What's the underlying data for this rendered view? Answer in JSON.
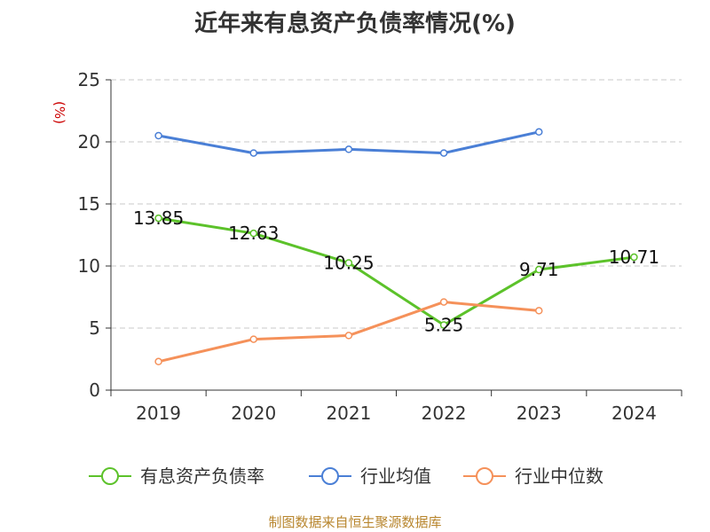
{
  "title": "近年来有息资产负债率情况(%)",
  "footer": "制图数据来自恒生聚源数据库",
  "colors": {
    "series_1": "#5cc22a",
    "series_2": "#4a7fd6",
    "series_3": "#f5915a",
    "grid": "#c8c8c8",
    "axis": "#333333",
    "ylabel": "#cc0000"
  },
  "chart_data": {
    "type": "line",
    "title": "近年来有息资产负债率情况(%)",
    "xlabel": "",
    "ylabel": "(%)",
    "ylim": [
      0,
      25
    ],
    "yticks": [
      0,
      5,
      10,
      15,
      20,
      25
    ],
    "grid": true,
    "legend_position": "bottom",
    "categories": [
      "2019",
      "2020",
      "2021",
      "2022",
      "2023",
      "2024"
    ],
    "series": [
      {
        "name": "有息资产负债率",
        "values": [
          13.85,
          12.63,
          10.25,
          5.25,
          9.71,
          10.71
        ],
        "labels": [
          "13.85",
          "12.63",
          "10.25",
          "5.25",
          "9.71",
          "10.71"
        ]
      },
      {
        "name": "行业均值",
        "values": [
          20.5,
          19.1,
          19.4,
          19.1,
          20.8,
          null
        ]
      },
      {
        "name": "行业中位数",
        "values": [
          2.3,
          4.1,
          4.4,
          7.1,
          6.4,
          null
        ]
      }
    ]
  }
}
